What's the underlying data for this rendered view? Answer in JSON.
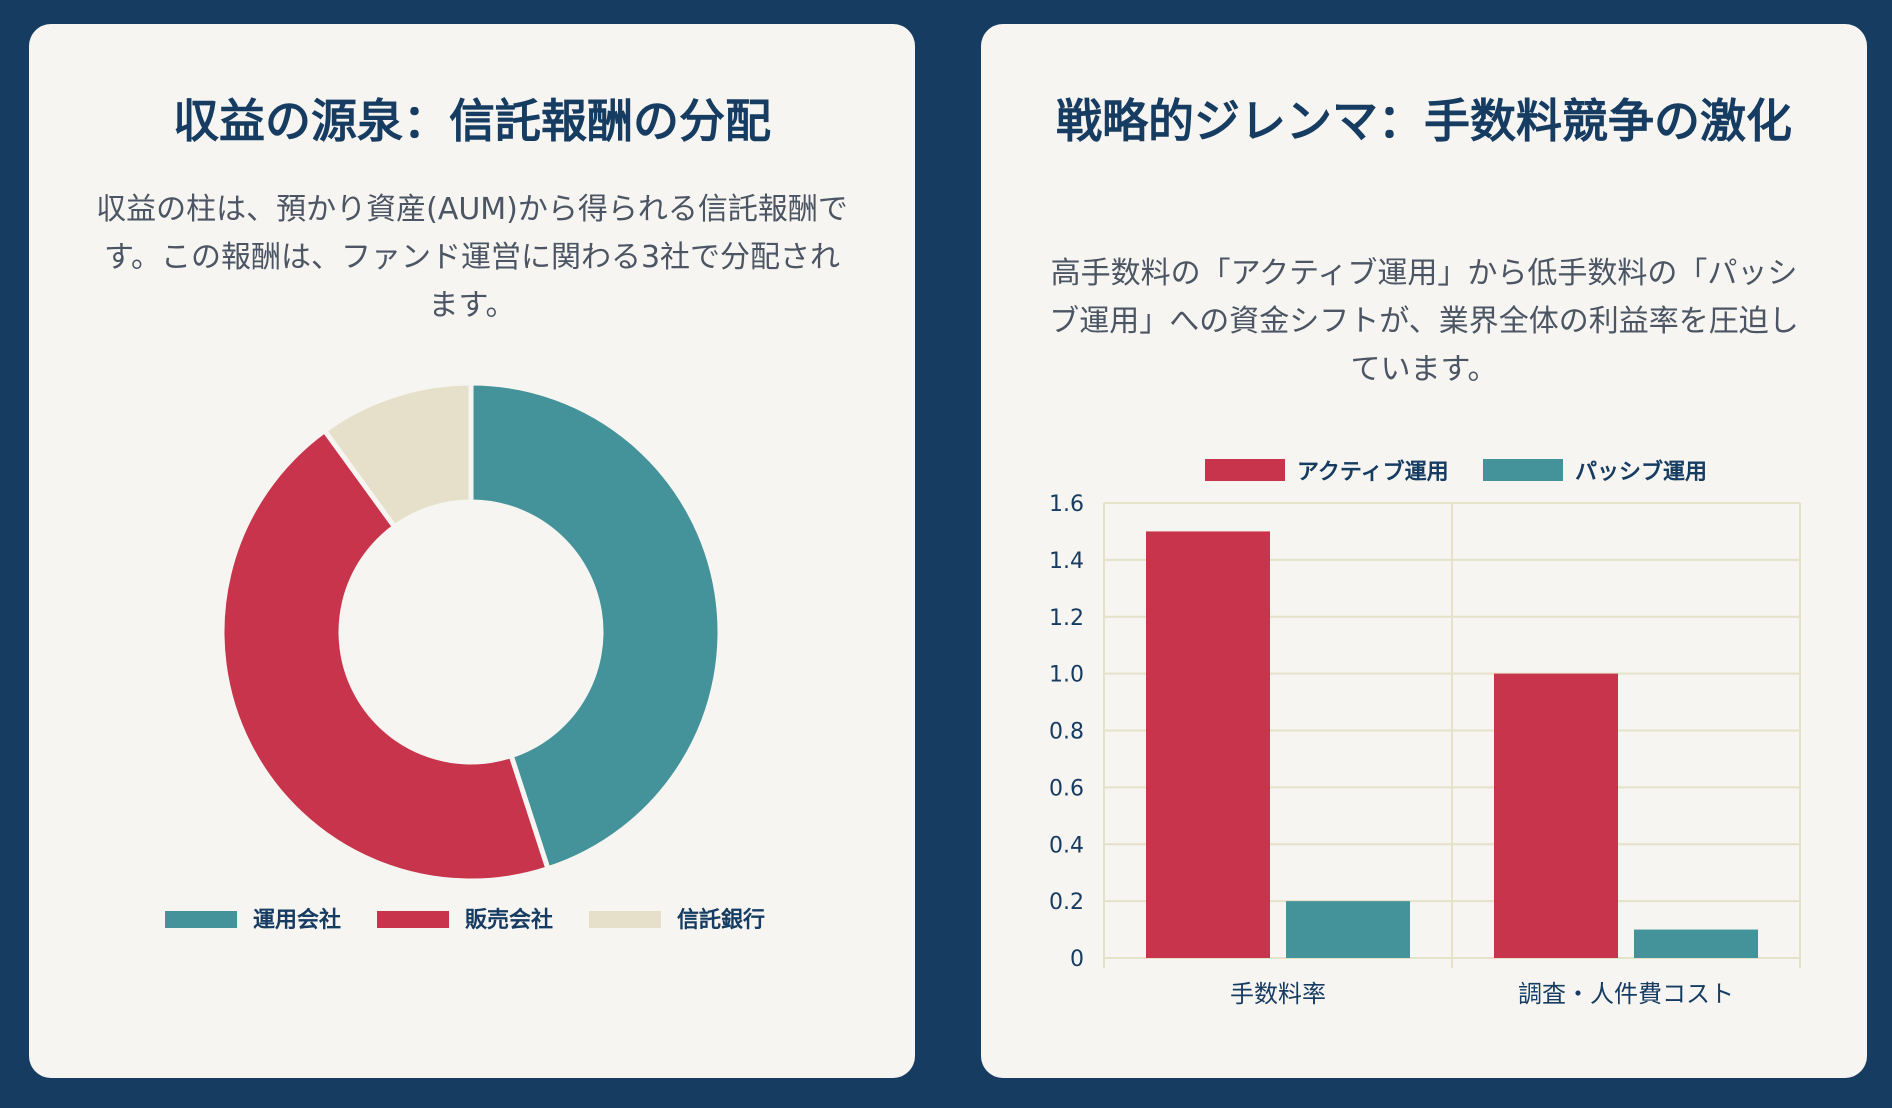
{
  "colors": {
    "background": "#173c62",
    "card": "#f7f5f1",
    "teal": "#44939a",
    "red": "#c8344b",
    "beige": "#e6dfca",
    "grid": "#e4e2c8",
    "text": "#173c62"
  },
  "left_card": {
    "title": "収益の源泉：信託報酬の分配",
    "description": "収益の柱は、預かり資産(AUM)から得られる信託報酬です。この報酬は、ファンド運営に関わる3社で分配されます。"
  },
  "right_card": {
    "title": "戦略的ジレンマ：手数料競争の激化",
    "description": "高手数料の「アクティブ運用」から低手数料の「パッシブ運用」への資金シフトが、業界全体の利益率を圧迫しています。"
  },
  "chart_data": [
    {
      "type": "pie",
      "variant": "doughnut",
      "labels": [
        "運用会社",
        "販売会社",
        "信託銀行"
      ],
      "values": [
        45,
        45,
        10
      ],
      "colors": [
        "#44939a",
        "#c8344b",
        "#e6dfca"
      ],
      "legend": "bottom"
    },
    {
      "type": "bar",
      "categories": [
        "手数料率",
        "調査・人件費コスト"
      ],
      "series": [
        {
          "name": "アクティブ運用",
          "values": [
            1.5,
            1.0
          ],
          "color": "#c8344b"
        },
        {
          "name": "パッシブ運用",
          "values": [
            0.2,
            0.1
          ],
          "color": "#44939a"
        }
      ],
      "ylim": [
        0,
        1.6
      ],
      "yticks": [
        0,
        0.2,
        0.4,
        0.6,
        0.8,
        1.0,
        1.2,
        1.4,
        1.6
      ],
      "ytick_labels": [
        "0",
        "0.2",
        "0.4",
        "0.6",
        "0.8",
        "1.0",
        "1.2",
        "1.4",
        "1.6"
      ],
      "grid": true,
      "legend": "top"
    }
  ]
}
